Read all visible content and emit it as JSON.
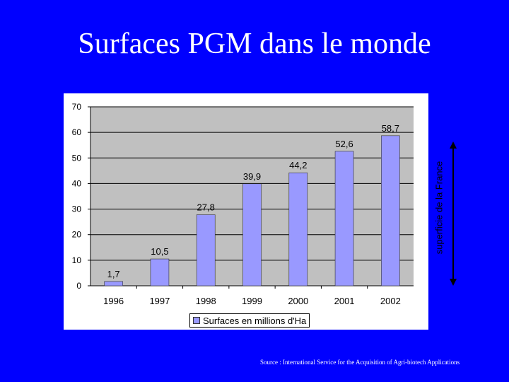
{
  "slide": {
    "title": "Surfaces PGM dans le monde",
    "side_label": "superficie de la France",
    "source": "Source :   International Service for the Acquisition of Agri-biotech Applications"
  },
  "colors": {
    "background": "#0000FF",
    "plot_area": "#C0C0C0",
    "bar_fill": "#9999FF",
    "text": "#FFFFFF"
  },
  "chart_data": {
    "type": "bar",
    "categories": [
      "1996",
      "1997",
      "1998",
      "1999",
      "2000",
      "2001",
      "2002"
    ],
    "series": [
      {
        "name": "Surfaces en millions d'Ha",
        "values": [
          1.7,
          10.5,
          27.8,
          39.9,
          44.2,
          52.6,
          58.7
        ],
        "labels": [
          "1,7",
          "10,5",
          "27,8",
          "39,9",
          "44,2",
          "52,6",
          "58,7"
        ]
      }
    ],
    "yticks": [
      "0",
      "10",
      "20",
      "30",
      "40",
      "50",
      "60",
      "70"
    ],
    "ylim": [
      0,
      70
    ],
    "grid": true,
    "legend_position": "bottom",
    "title": "",
    "xlabel": "",
    "ylabel": ""
  }
}
